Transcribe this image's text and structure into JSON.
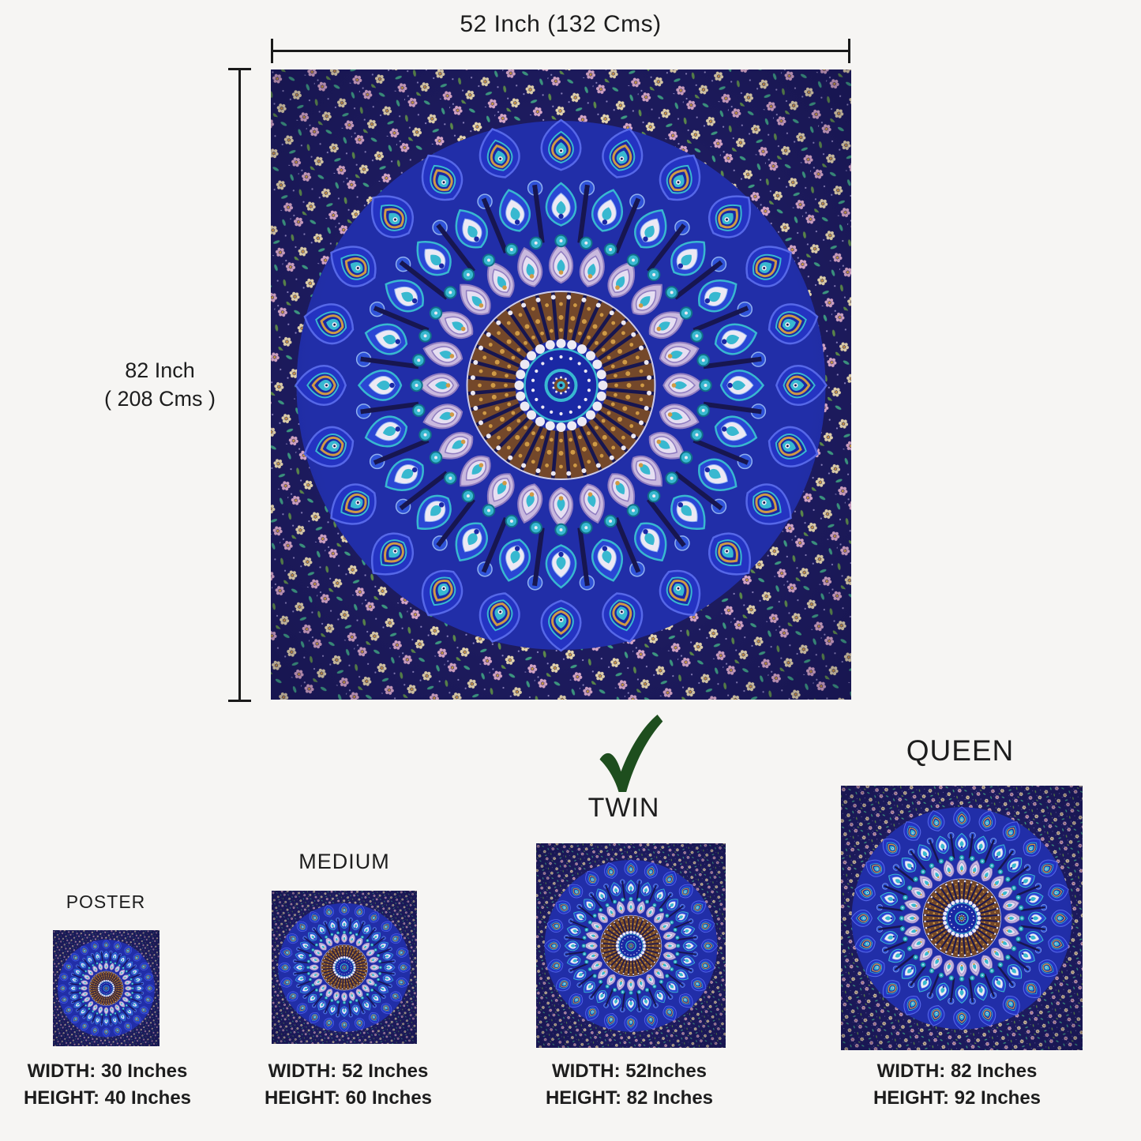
{
  "page": {
    "background": "#f6f5f3",
    "text_color": "#1d1d1d",
    "line_color": "#1a1a1a"
  },
  "dimensions": {
    "width_label": "52 Inch (132 Cms)",
    "height_label_line1": "82 Inch",
    "height_label_line2": "( 208 Cms )"
  },
  "check": {
    "color": "#1e4e1e"
  },
  "sizes": [
    {
      "name": "POSTER",
      "width": "WIDTH: 30 Inches",
      "height": "HEIGHT: 40 Inches",
      "selected": false
    },
    {
      "name": "MEDIUM",
      "width": "WIDTH: 52 Inches",
      "height": "HEIGHT: 60 Inches",
      "selected": false
    },
    {
      "name": "TWIN",
      "width": "WIDTH: 52Inches",
      "height": "HEIGHT: 82 Inches",
      "selected": true
    },
    {
      "name": "QUEEN",
      "width": "WIDTH: 82 Inches",
      "height": "HEIGHT: 92 Inches",
      "selected": false
    }
  ],
  "tapestry": {
    "palette": {
      "field": "#1d1b5e",
      "base_blue": "#212ea8",
      "dome_blue": "#2433c2",
      "dome_blue_dark": "#1a28a4",
      "dome_stroke": "#5668e8",
      "blue_mid": "#2a46d4",
      "button_blue": "#2f52d8",
      "button_stroke": "#8fb0f0",
      "teal": "#38b8d0",
      "teal_dark": "#117189",
      "white": "#ece9f4",
      "lavender": "#c9b9de",
      "lavender_light": "#e6dff2",
      "lavender_stroke": "#8f7cc0",
      "brown": "#74482a",
      "gold": "#cf9a46",
      "navy_line": "#171650",
      "flower_pink": "#d8a8c8",
      "flower_cream": "#e6d6ae",
      "leaf_teal": "#3e9b82",
      "leaf_green": "#5d8a4a",
      "sprinkle": "#8f86c0"
    }
  }
}
